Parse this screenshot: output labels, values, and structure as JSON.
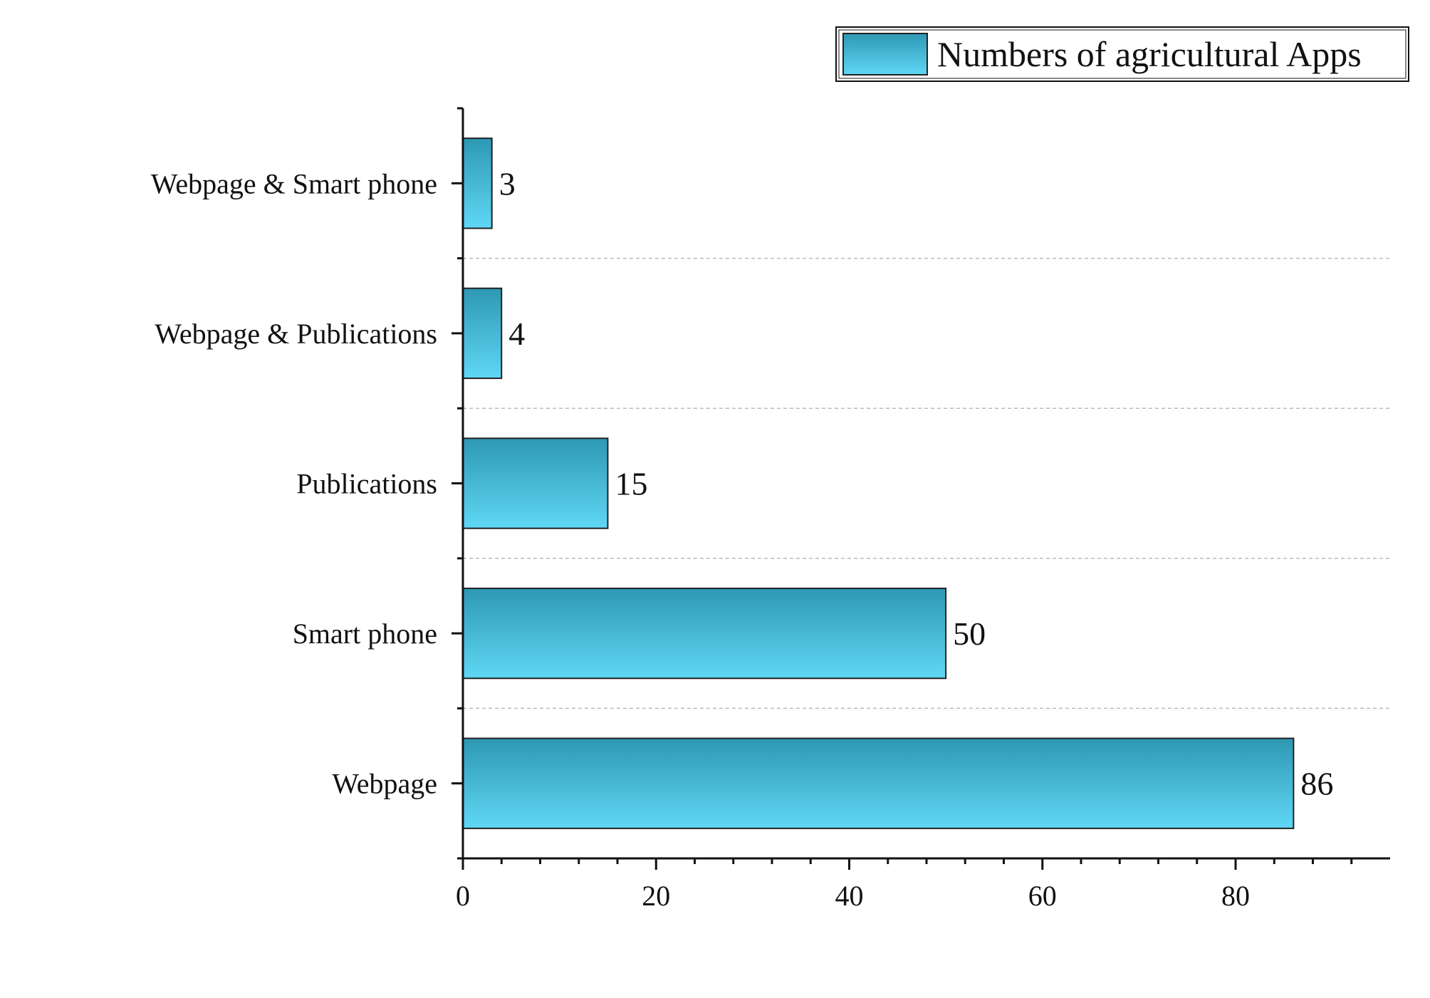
{
  "chart_data": {
    "type": "bar",
    "orientation": "horizontal",
    "categories": [
      "Webpage & Smart phone",
      "Webpage & Publications",
      "Publications",
      "Smart phone",
      "Webpage"
    ],
    "series": [
      {
        "name": "Numbers of agricultural Apps",
        "values": [
          3,
          4,
          15,
          50,
          86
        ]
      }
    ],
    "data_labels": [
      "3",
      "4",
      "15",
      "50",
      "86"
    ],
    "xticks": [
      0,
      20,
      40,
      60,
      80
    ],
    "xtick_labels": [
      "0",
      "20",
      "40",
      "60",
      "80"
    ],
    "xlim": [
      0,
      96
    ],
    "minor_tick_step": 4,
    "grid": "dashed horizontal separators between categories",
    "legend_placement": "top-right",
    "colors": {
      "bar_top": "#2e98b4",
      "bar_bottom": "#5fd7f5",
      "bar_edge": "#222222",
      "grid": "#bbbbbb",
      "axis": "#111111"
    }
  }
}
